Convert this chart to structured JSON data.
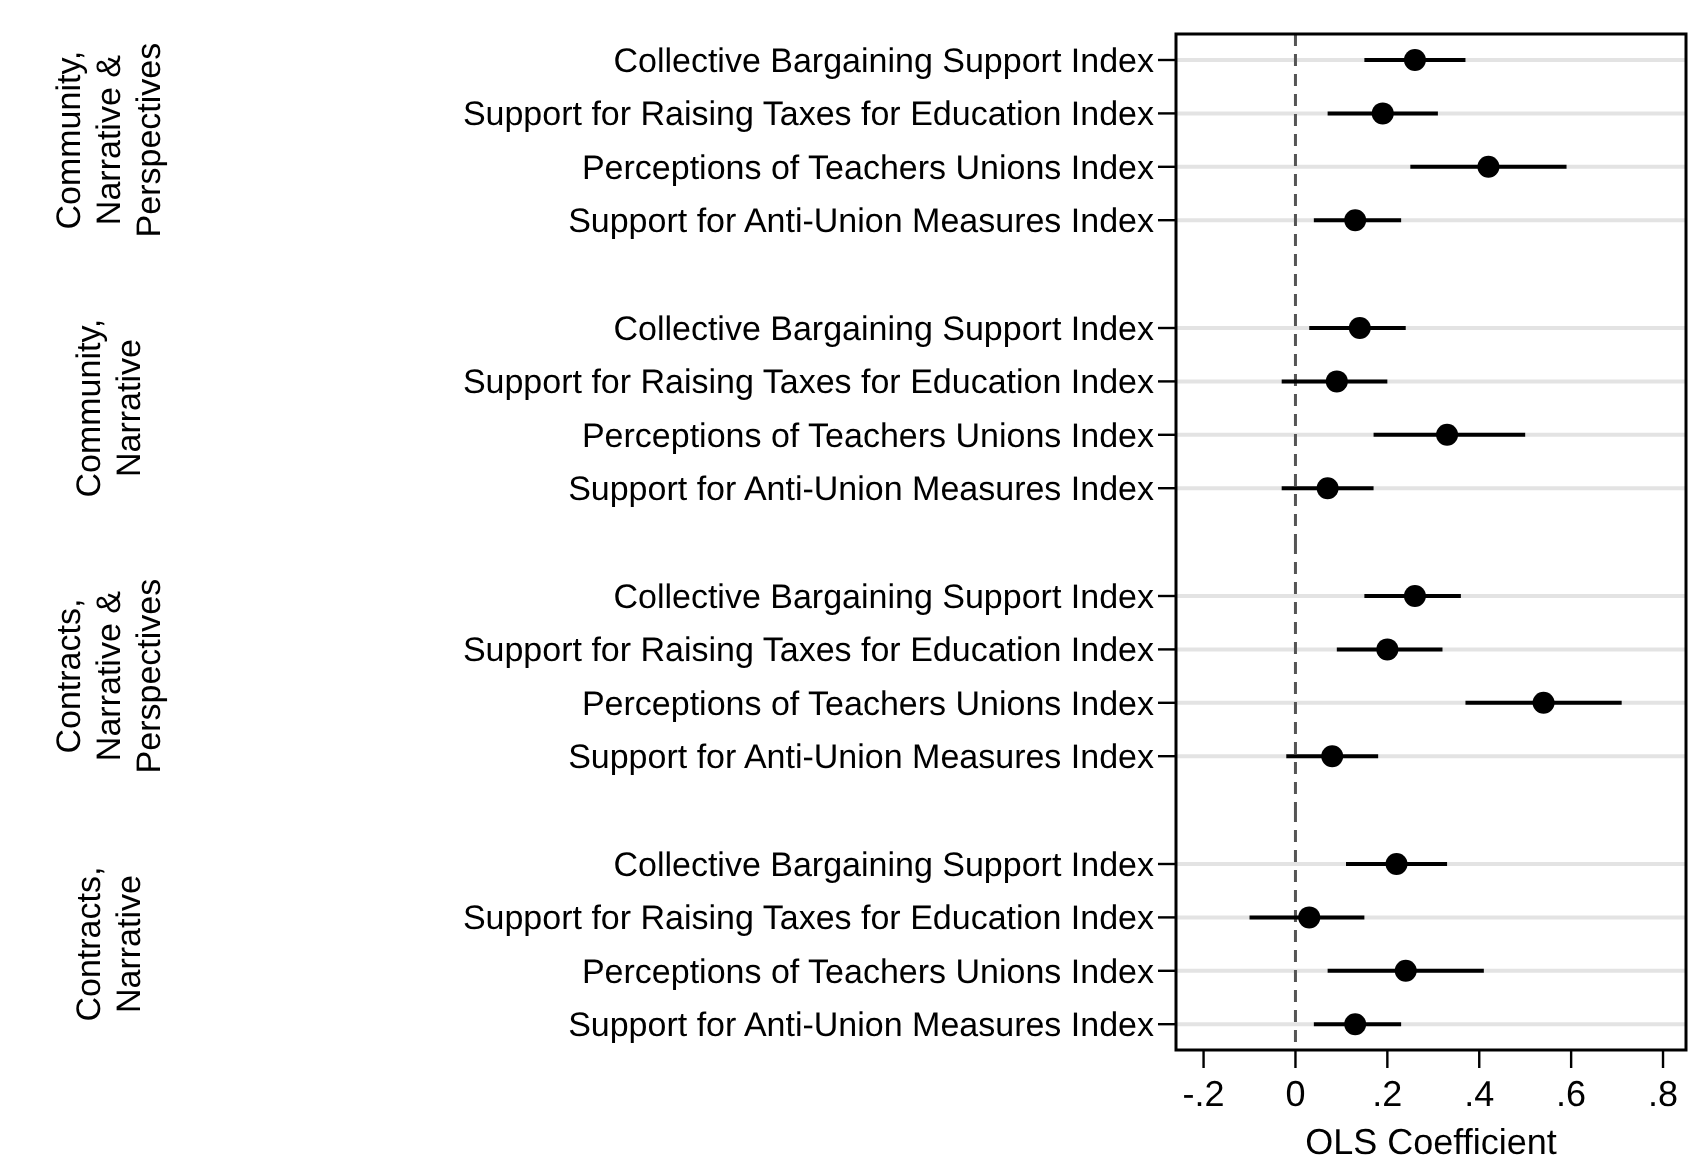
{
  "chart_data": [
    {
      "type": "scatter",
      "orientation": "horizontal",
      "ylabel": "Community, Narrative & Perspectives",
      "categories": [
        "Collective Bargaining Support Index",
        "Support for Raising Taxes for Education Index",
        "Perceptions of Teachers Unions Index",
        "Support for Anti-Union Measures Index"
      ],
      "values": [
        0.26,
        0.19,
        0.42,
        0.13
      ],
      "errors": [
        [
          0.15,
          0.37
        ],
        [
          0.07,
          0.31
        ],
        [
          0.25,
          0.59
        ],
        [
          0.04,
          0.23
        ]
      ],
      "color": "#000000",
      "marker": "circle",
      "xlim": [
        -0.26,
        0.85
      ],
      "tick_labels": "y",
      "grid": "y",
      "ref_lines": [
        {
          "axis": "x",
          "value": 0,
          "line_style": "dashed",
          "color": "#555555"
        }
      ]
    },
    {
      "type": "scatter",
      "orientation": "horizontal",
      "ylabel": "Community, Narrative",
      "categories": [
        "Collective Bargaining Support Index",
        "Support for Raising Taxes for Education Index",
        "Perceptions of Teachers Unions Index",
        "Support for Anti-Union Measures Index"
      ],
      "values": [
        0.14,
        0.09,
        0.33,
        0.07
      ],
      "errors": [
        [
          0.03,
          0.24
        ],
        [
          -0.03,
          0.2
        ],
        [
          0.17,
          0.5
        ],
        [
          -0.03,
          0.17
        ]
      ],
      "color": "#000000",
      "marker": "circle",
      "xlim": [
        -0.26,
        0.85
      ],
      "tick_labels": "y",
      "grid": "y",
      "ref_lines": [
        {
          "axis": "x",
          "value": 0,
          "line_style": "dashed",
          "color": "#555555"
        }
      ]
    },
    {
      "type": "scatter",
      "orientation": "horizontal",
      "ylabel": "Contracts, Narrative & Perspectives",
      "categories": [
        "Collective Bargaining Support Index",
        "Support for Raising Taxes for Education Index",
        "Perceptions of Teachers Unions Index",
        "Support for Anti-Union Measures Index"
      ],
      "values": [
        0.26,
        0.2,
        0.54,
        0.08
      ],
      "errors": [
        [
          0.15,
          0.36
        ],
        [
          0.09,
          0.32
        ],
        [
          0.37,
          0.71
        ],
        [
          -0.02,
          0.18
        ]
      ],
      "color": "#000000",
      "marker": "circle",
      "xlim": [
        -0.26,
        0.85
      ],
      "tick_labels": "y",
      "grid": "y",
      "ref_lines": [
        {
          "axis": "x",
          "value": 0,
          "line_style": "dashed",
          "color": "#555555"
        }
      ]
    },
    {
      "type": "scatter",
      "orientation": "horizontal",
      "ylabel": "Contracts, Narrative",
      "xlabel": "OLS Coefficient",
      "categories": [
        "Collective Bargaining Support Index",
        "Support for Raising Taxes for Education Index",
        "Perceptions of Teachers Unions Index",
        "Support for Anti-Union Measures Index"
      ],
      "values": [
        0.22,
        0.03,
        0.24,
        0.13
      ],
      "errors": [
        [
          0.11,
          0.33
        ],
        [
          -0.1,
          0.15
        ],
        [
          0.07,
          0.41
        ],
        [
          0.04,
          0.23
        ]
      ],
      "color": "#000000",
      "marker": "circle",
      "xlim": [
        -0.26,
        0.85
      ],
      "xticks": [
        {
          "value": -0.2,
          "label": "-.2"
        },
        0,
        {
          "value": 0.2,
          "label": ".2"
        },
        {
          "value": 0.4,
          "label": ".4"
        },
        {
          "value": 0.6,
          "label": ".6"
        },
        {
          "value": 0.8,
          "label": ".8"
        }
      ],
      "grid": "y",
      "ref_lines": [
        {
          "axis": "x",
          "value": 0,
          "line_style": "dashed",
          "color": "#555555"
        }
      ]
    }
  ]
}
